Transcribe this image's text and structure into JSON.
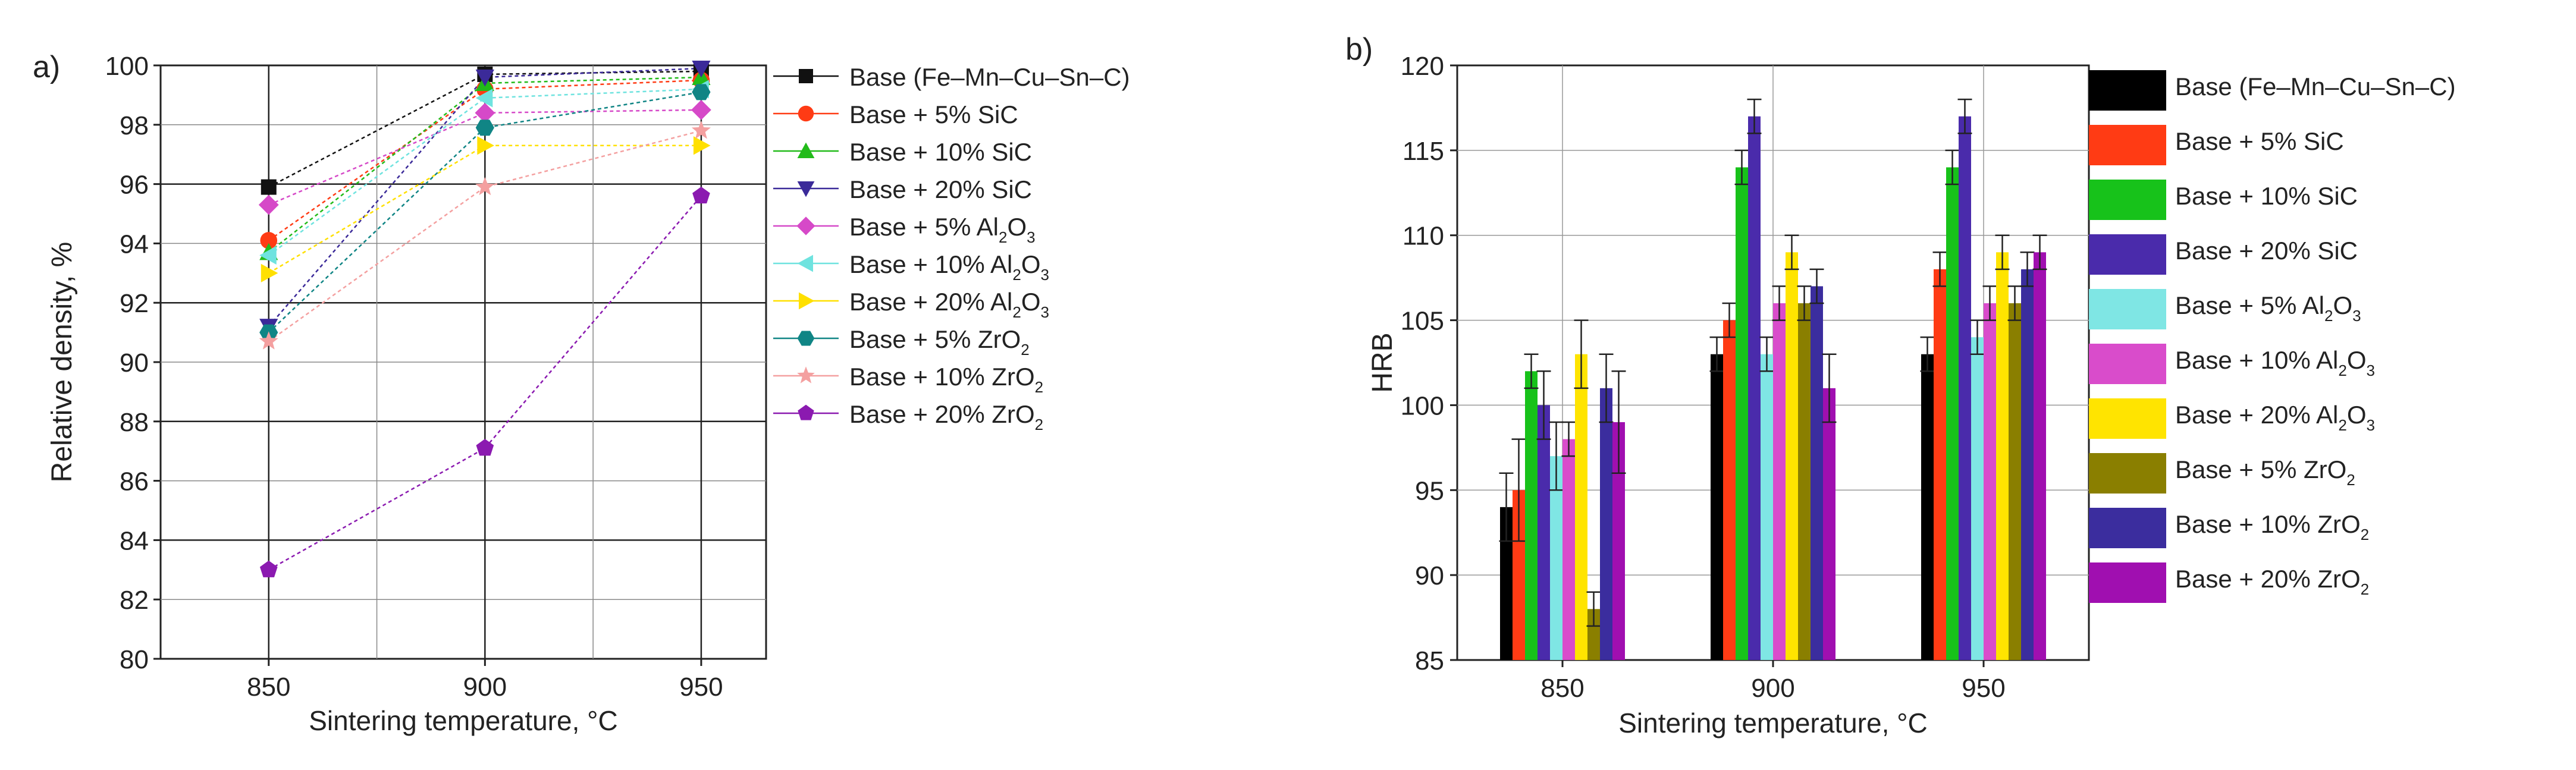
{
  "panel_labels": [
    "a)",
    "b)"
  ],
  "chart_data": [
    {
      "type": "line",
      "title": "",
      "panel": "a)",
      "xlabel": "Sintering temperature, °C",
      "ylabel": "Relative density, %",
      "x": [
        850,
        900,
        950
      ],
      "xlim": [
        825,
        965
      ],
      "ylim": [
        80,
        100
      ],
      "yticks": [
        80,
        82,
        84,
        86,
        88,
        90,
        92,
        94,
        96,
        98,
        100
      ],
      "legend_placement": "right",
      "series": [
        {
          "name": "Base (Fe–Mn–Cu–Sn–C)",
          "label_main": "Base (Fe–Mn–Cu–Sn–C)",
          "label_sub": "",
          "label_tail": "",
          "values": [
            95.9,
            99.7,
            99.8
          ],
          "color": "#111111",
          "marker": "square"
        },
        {
          "name": "Base + 5% SiC",
          "label_main": "Base + 5% SiC",
          "label_sub": "",
          "label_tail": "",
          "values": [
            94.1,
            99.2,
            99.5
          ],
          "color": "#ff3b14",
          "marker": "circle"
        },
        {
          "name": "Base + 10% SiC",
          "label_main": "Base + 10% SiC",
          "label_sub": "",
          "label_tail": "",
          "values": [
            93.7,
            99.4,
            99.6
          ],
          "color": "#22bb1a",
          "marker": "triangle-up"
        },
        {
          "name": "Base + 20% SiC",
          "label_main": "Base + 20% SiC",
          "label_sub": "",
          "label_tail": "",
          "values": [
            91.2,
            99.6,
            99.9
          ],
          "color": "#3b2a99",
          "marker": "triangle-down"
        },
        {
          "name": "Base + 5% Al2O3",
          "label_main": "Base + 5% Al",
          "label_sub": "2",
          "label_tail": "O",
          "label_sub2": "3",
          "values": [
            95.3,
            98.4,
            98.5
          ],
          "color": "#d649c8",
          "marker": "diamond"
        },
        {
          "name": "Base + 10% Al2O3",
          "label_main": "Base + 10% Al",
          "label_sub": "2",
          "label_tail": "O",
          "label_sub2": "3",
          "values": [
            93.6,
            98.9,
            99.2
          ],
          "color": "#6fe3df",
          "marker": "triangle-left"
        },
        {
          "name": "Base + 20% Al2O3",
          "label_main": "Base + 20% Al",
          "label_sub": "2",
          "label_tail": "O",
          "label_sub2": "3",
          "values": [
            93.0,
            97.3,
            97.3
          ],
          "color": "#ffe000",
          "marker": "triangle-right"
        },
        {
          "name": "Base + 5% ZrO2",
          "label_main": "Base + 5% ZrO",
          "label_sub": "2",
          "label_tail": "",
          "values": [
            91.0,
            97.9,
            99.1
          ],
          "color": "#108585",
          "marker": "hexagon"
        },
        {
          "name": "Base + 10% ZrO2",
          "label_main": "Base + 10% ZrO",
          "label_sub": "2",
          "label_tail": "",
          "values": [
            90.7,
            95.9,
            97.8
          ],
          "color": "#f4a0a0",
          "marker": "star"
        },
        {
          "name": "Base + 20% ZrO2",
          "label_main": "Base + 20% ZrO",
          "label_sub": "2",
          "label_tail": "",
          "values": [
            83.0,
            87.1,
            95.6
          ],
          "color": "#8b1ab0",
          "marker": "pentagon"
        }
      ]
    },
    {
      "type": "bar",
      "title": "",
      "panel": "b)",
      "xlabel": "Sintering temperature, °C",
      "ylabel": "HRB",
      "categories": [
        "850",
        "900",
        "950"
      ],
      "ylim": [
        85,
        120
      ],
      "yticks": [
        85,
        90,
        95,
        100,
        105,
        110,
        115,
        120
      ],
      "legend_placement": "right",
      "series": [
        {
          "name": "Base (Fe–Mn–Cu–Sn–C)",
          "label_main": "Base (Fe–Mn–Cu–Sn–C)",
          "label_sub": "",
          "label_tail": "",
          "values": [
            94,
            103,
            103
          ],
          "errors": [
            2,
            1,
            1
          ],
          "color": "#000000"
        },
        {
          "name": "Base + 5% SiC",
          "label_main": "Base + 5% SiC",
          "label_sub": "",
          "label_tail": "",
          "values": [
            95,
            105,
            108
          ],
          "errors": [
            3,
            1,
            1
          ],
          "color": "#ff3b14"
        },
        {
          "name": "Base + 10% SiC",
          "label_main": "Base + 10% SiC",
          "label_sub": "",
          "label_tail": "",
          "values": [
            102,
            114,
            114
          ],
          "errors": [
            1,
            1,
            1
          ],
          "color": "#17c21a"
        },
        {
          "name": "Base + 20% SiC",
          "label_main": "Base + 20% SiC",
          "label_sub": "",
          "label_tail": "",
          "values": [
            100,
            117,
            117
          ],
          "errors": [
            2,
            1,
            1
          ],
          "color": "#4a2bab"
        },
        {
          "name": "Base + 5% Al2O3",
          "label_main": "Base + 5% Al",
          "label_sub": "2",
          "label_tail": "O",
          "label_sub2": "3",
          "values": [
            97,
            103,
            104
          ],
          "errors": [
            2,
            1,
            1
          ],
          "color": "#7fe6e4"
        },
        {
          "name": "Base + 10% Al2O3",
          "label_main": "Base + 10% Al",
          "label_sub": "2",
          "label_tail": "O",
          "label_sub2": "3",
          "values": [
            98,
            106,
            106
          ],
          "errors": [
            1,
            1,
            1
          ],
          "color": "#d94ccb"
        },
        {
          "name": "Base + 20% Al2O3",
          "label_main": "Base + 20% Al",
          "label_sub": "2",
          "label_tail": "O",
          "label_sub2": "3",
          "values": [
            103,
            109,
            109
          ],
          "errors": [
            2,
            1,
            1
          ],
          "color": "#ffe400"
        },
        {
          "name": "Base + 5% ZrO2",
          "label_main": "Base + 5% ZrO",
          "label_sub": "2",
          "label_tail": "",
          "values": [
            88,
            106,
            106
          ],
          "errors": [
            1,
            1,
            1
          ],
          "color": "#8a7f00"
        },
        {
          "name": "Base + 10% ZrO2",
          "label_main": "Base + 10% ZrO",
          "label_sub": "2",
          "label_tail": "",
          "values": [
            101,
            107,
            108
          ],
          "errors": [
            2,
            1,
            1
          ],
          "color": "#3b2d9e"
        },
        {
          "name": "Base + 20% ZrO2",
          "label_main": "Base + 20% ZrO",
          "label_sub": "2",
          "label_tail": "",
          "values": [
            99,
            101,
            109
          ],
          "errors": [
            3,
            2,
            1
          ],
          "color": "#a00fb0"
        }
      ]
    }
  ]
}
